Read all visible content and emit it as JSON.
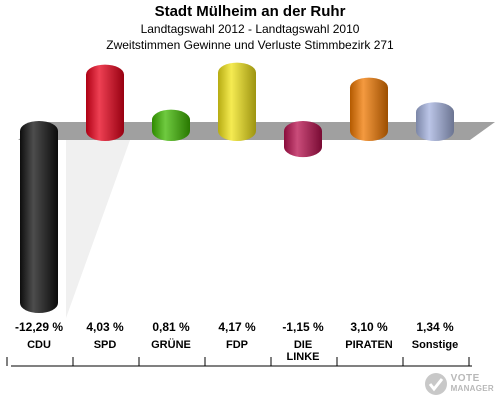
{
  "header": {
    "title": "Stadt Mülheim an der Ruhr",
    "subtitle1": "Landtagswahl 2012 - Landtagswahl 2010",
    "subtitle2": "Zweitstimmen Gewinne und Verluste Stimmbezirk 271"
  },
  "chart_data": {
    "type": "bar",
    "categories": [
      "CDU",
      "SPD",
      "GRÜNE",
      "FDP",
      "DIE LINKE",
      "PIRATEN",
      "Sonstige"
    ],
    "category_lines": [
      [
        "CDU"
      ],
      [
        "SPD"
      ],
      [
        "GRÜNE"
      ],
      [
        "FDP"
      ],
      [
        "DIE",
        "LINKE"
      ],
      [
        "PIRATEN"
      ],
      [
        "Sonstige"
      ]
    ],
    "values": [
      -12.29,
      4.03,
      0.81,
      4.17,
      -1.15,
      3.1,
      1.34
    ],
    "value_labels": [
      "-12,29 %",
      "4,03 %",
      "0,81 %",
      "4,17 %",
      "-1,15 %",
      "3,10 %",
      "1,34 %"
    ],
    "colors": [
      "#111111",
      "#e8001a",
      "#3fb800",
      "#f2e418",
      "#b8104e",
      "#f07800",
      "#a4b2df"
    ],
    "baseline": 0
  },
  "logo": {
    "line1": "VOTE",
    "line2": "MANAGER"
  }
}
